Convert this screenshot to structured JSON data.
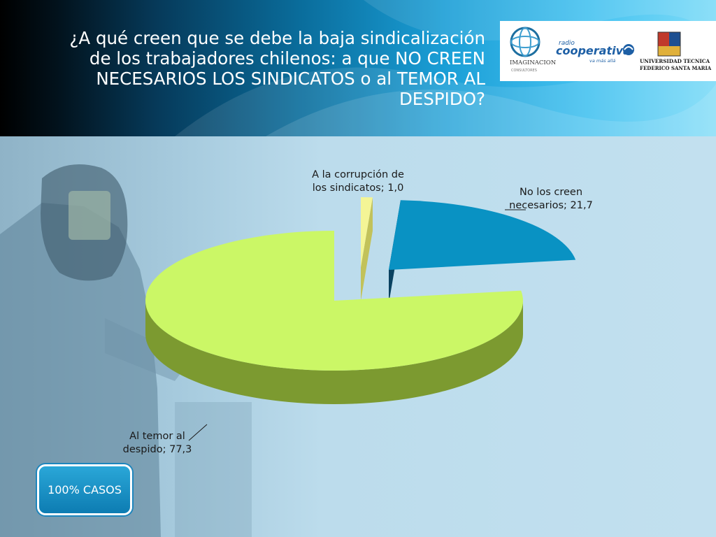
{
  "slide": {
    "title": "¿A qué creen que se debe la baja sindicalización de los trabajadores chilenos: a que NO CREEN NECESARIOS LOS SINDICATOS o al TEMOR AL DESPIDO?",
    "badge": "100% CASOS"
  },
  "logos": {
    "imaginacion": {
      "name": "IMAGINACION",
      "tagline": "CONSULTORES"
    },
    "cooperativa": {
      "prefix": "radio",
      "name": "cooperativa",
      "tagline": "va más allá"
    },
    "usm": {
      "line1": "UNIVERSIDAD TECNICA",
      "line2": "FEDERICO SANTA MARIA"
    }
  },
  "chart_data": {
    "type": "pie",
    "style": "3d-exploded",
    "start_angle_deg": -90,
    "series": [
      {
        "name": "A la corrupción de los sindicatos",
        "value": 1.0,
        "label_lines": [
          "A la corrupción de",
          "los sindicatos; 1,0"
        ],
        "top_color": "#f4f596",
        "side_color": "#a8a847"
      },
      {
        "name": "No los creen necesarios",
        "value": 21.7,
        "label_lines": [
          "No los creen",
          "necesarios; 21,7"
        ],
        "top_color": "#0992c3",
        "side_color": "#0a4a66"
      },
      {
        "name": "Al temor al despido",
        "value": 77.3,
        "label_lines": [
          "Al temor al",
          "despido; 77,3"
        ],
        "top_color": "#cbf766",
        "side_color": "#7c9a30"
      }
    ]
  }
}
